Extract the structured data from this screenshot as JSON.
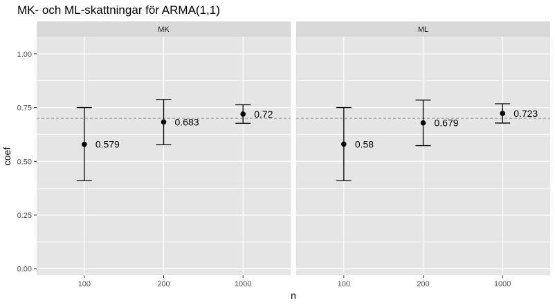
{
  "chart_data": {
    "type": "errorbar",
    "title": "MK- och ML-skattningar för ARMA(1,1)",
    "xlabel": "n",
    "ylabel": "coef",
    "categories": [
      "100",
      "200",
      "1000"
    ],
    "ylim": [
      -0.03,
      1.08
    ],
    "yticks": [
      "0.00",
      "0.25",
      "0.50",
      "0.75",
      "1.00"
    ],
    "reference_line": 0.7,
    "grid": true,
    "panels": [
      {
        "label": "MK",
        "points": [
          {
            "x": "100",
            "value": 0.579,
            "lower": 0.41,
            "upper": 0.75,
            "label": "0.579"
          },
          {
            "x": "200",
            "value": 0.683,
            "lower": 0.578,
            "upper": 0.788,
            "label": "0.683"
          },
          {
            "x": "1000",
            "value": 0.72,
            "lower": 0.677,
            "upper": 0.763,
            "label": "0.72"
          }
        ]
      },
      {
        "label": "ML",
        "points": [
          {
            "x": "100",
            "value": 0.58,
            "lower": 0.41,
            "upper": 0.75,
            "label": "0.58"
          },
          {
            "x": "200",
            "value": 0.679,
            "lower": 0.573,
            "upper": 0.785,
            "label": "0.679"
          },
          {
            "x": "1000",
            "value": 0.723,
            "lower": 0.678,
            "upper": 0.768,
            "label": "0.723"
          }
        ]
      }
    ],
    "colors": {
      "panel_background": "#e5e5e5",
      "strip_background": "#d9d9d9",
      "grid": "#ffffff",
      "point": "#000000",
      "reference_line": "#8c8c8c"
    }
  }
}
